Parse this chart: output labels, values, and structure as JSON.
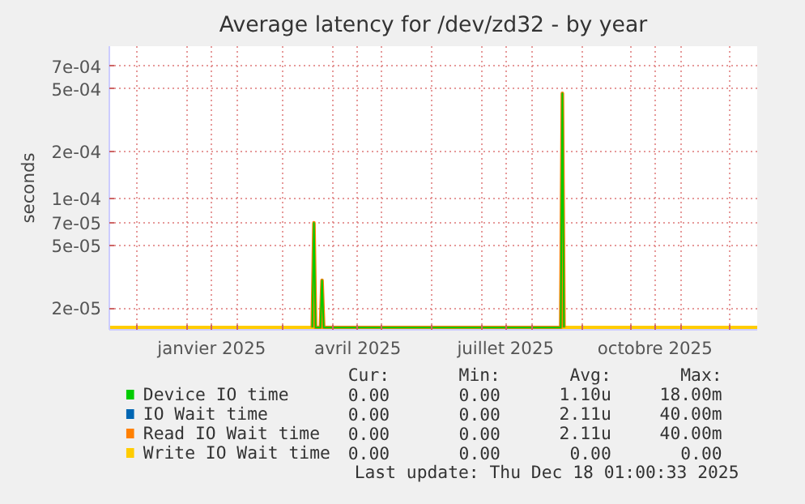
{
  "chart_data": {
    "type": "line",
    "title": "Average latency for /dev/zd32 - by year",
    "ylabel": "seconds",
    "xlim": [
      "2024-11-14",
      "2025-12-18"
    ],
    "xticks": [
      {
        "value": "2024-12-01",
        "label": null
      },
      {
        "value": "2025-01-01",
        "label": null
      },
      {
        "value": "2025-01-16",
        "label": "janvier 2025"
      },
      {
        "value": "2025-02-01",
        "label": null
      },
      {
        "value": "2025-03-01",
        "label": null
      },
      {
        "value": "2025-04-01",
        "label": null
      },
      {
        "value": "2025-04-16",
        "label": "avril 2025"
      },
      {
        "value": "2025-05-01",
        "label": null
      },
      {
        "value": "2025-06-01",
        "label": null
      },
      {
        "value": "2025-07-01",
        "label": null
      },
      {
        "value": "2025-07-16",
        "label": "juillet 2025"
      },
      {
        "value": "2025-08-01",
        "label": null
      },
      {
        "value": "2025-09-01",
        "label": null
      },
      {
        "value": "2025-10-01",
        "label": null
      },
      {
        "value": "2025-10-16",
        "label": "octobre 2025"
      },
      {
        "value": "2025-11-01",
        "label": null
      },
      {
        "value": "2025-12-01",
        "label": null
      }
    ],
    "ylim": [
      1.45e-05,
      0.00094
    ],
    "log": true,
    "yticks": [
      {
        "value": 2e-05,
        "label": "2e-05"
      },
      {
        "value": 5e-05,
        "label": "5e-05"
      },
      {
        "value": 7e-05,
        "label": "7e-05"
      },
      {
        "value": 0.0001,
        "label": "1e-04"
      },
      {
        "value": 0.0002,
        "label": "2e-04"
      },
      {
        "value": 0.0005,
        "label": "5e-04"
      },
      {
        "value": 0.0007,
        "label": "7e-04"
      }
    ],
    "grid": true,
    "legend": "bottom",
    "series": [
      {
        "name": "Device IO time",
        "color": "#00cc00",
        "x": [
          "2025-03-19",
          "2025-03-20",
          "2025-03-21",
          "2025-03-24",
          "2025-03-25",
          "2025-03-26",
          "2025-08-19",
          "2025-08-20",
          "2025-08-21"
        ],
        "values": [
          1.5e-05,
          7e-05,
          1.5e-05,
          1.5e-05,
          3e-05,
          1.5e-05,
          1.5e-05,
          0.00047,
          1.5e-05
        ]
      },
      {
        "name": "IO Wait time",
        "color": "#0066b3"
      },
      {
        "name": "Read IO Wait time",
        "color": "#ff8000",
        "x": [
          "2025-03-19",
          "2025-03-20",
          "2025-03-21",
          "2025-03-24",
          "2025-03-25",
          "2025-03-26",
          "2025-08-19",
          "2025-08-20",
          "2025-08-21"
        ],
        "values": [
          1.5e-05,
          7e-05,
          1.5e-05,
          1.5e-05,
          3e-05,
          1.5e-05,
          1.5e-05,
          0.00047,
          1.5e-05
        ]
      },
      {
        "name": "Write IO Wait time",
        "color": "#ffcc00",
        "x": [
          "2024-11-14",
          "2025-12-18"
        ],
        "values": [
          1.5e-05,
          1.5e-05
        ]
      }
    ],
    "annotations": [
      "Cur:",
      "Min:",
      "Avg:",
      "Max:",
      "0.00",
      "0.00",
      "1.10u",
      "18.00m",
      "0.00",
      "0.00",
      "2.11u",
      "40.00m",
      "0.00",
      "0.00",
      "2.11u",
      "40.00m",
      "0.00",
      "0.00",
      "0.00",
      "0.00",
      "Last update: Thu Dec 18 01:00:33 2025"
    ]
  }
}
